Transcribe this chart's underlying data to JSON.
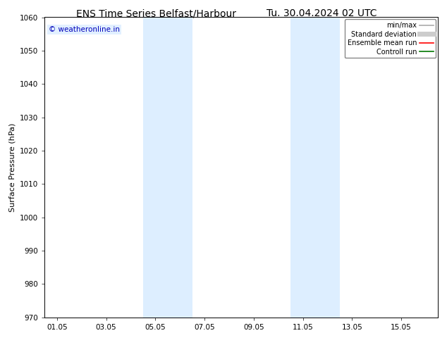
{
  "title_left": "ENS Time Series Belfast/Harbour",
  "title_right": "Tu. 30.04.2024 02 UTC",
  "ylabel": "Surface Pressure (hPa)",
  "ylim": [
    970,
    1060
  ],
  "yticks": [
    970,
    980,
    990,
    1000,
    1010,
    1020,
    1030,
    1040,
    1050,
    1060
  ],
  "xtick_labels": [
    "01.05",
    "03.05",
    "05.05",
    "07.05",
    "09.05",
    "11.05",
    "13.05",
    "15.05"
  ],
  "xtick_positions": [
    0,
    2,
    4,
    6,
    8,
    10,
    12,
    14
  ],
  "xlim": [
    -0.5,
    15.5
  ],
  "shaded_bands": [
    {
      "x_start": 3.5,
      "x_end": 5.5,
      "color": "#ddeeff"
    },
    {
      "x_start": 9.5,
      "x_end": 11.5,
      "color": "#ddeeff"
    }
  ],
  "watermark_text": "© weatheronline.in",
  "watermark_color": "#0000bb",
  "watermark_bg": "#ddeeff",
  "legend_items": [
    {
      "label": "min/max",
      "color": "#aaaaaa",
      "lw": 1.2
    },
    {
      "label": "Standard deviation",
      "color": "#cccccc",
      "lw": 5
    },
    {
      "label": "Ensemble mean run",
      "color": "#ff0000",
      "lw": 1.2
    },
    {
      "label": "Controll run",
      "color": "#007700",
      "lw": 1.2
    }
  ],
  "background_color": "#ffffff",
  "title_fontsize": 10,
  "axis_label_fontsize": 8,
  "tick_fontsize": 7.5,
  "watermark_fontsize": 7.5,
  "legend_fontsize": 7
}
